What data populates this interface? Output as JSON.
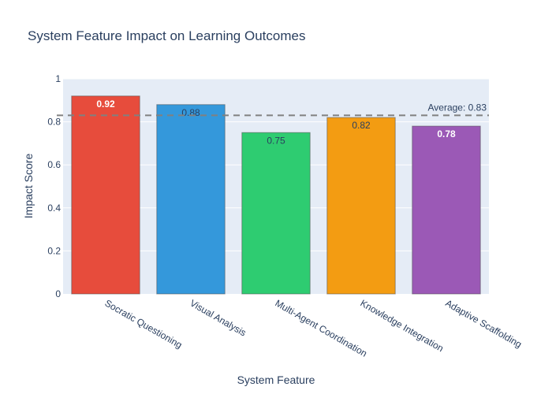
{
  "chart_data": {
    "type": "bar",
    "title": "System Feature Impact on Learning Outcomes",
    "xlabel": "System Feature",
    "ylabel": "Impact Score",
    "ylim": [
      0,
      1
    ],
    "yticks": [
      "0",
      "0.2",
      "0.4",
      "0.6",
      "0.8",
      "1"
    ],
    "categories": [
      "Socratic Questioning",
      "Visual Analysis",
      "Multi-Agent Coordination",
      "Knowledge Integration",
      "Adaptive Scaffolding"
    ],
    "values": [
      0.92,
      0.88,
      0.75,
      0.82,
      0.78
    ],
    "value_labels": [
      "0.92",
      "0.88",
      "0.75",
      "0.82",
      "0.78"
    ],
    "bar_colors": [
      "#e74c3c",
      "#3498db",
      "#2ecc71",
      "#f39c12",
      "#9b59b6"
    ],
    "label_colors": [
      "#ffffff",
      "#2a3f5f",
      "#2a3f5f",
      "#2a3f5f",
      "#ffffff"
    ],
    "label_bold": [
      true,
      false,
      false,
      false,
      true
    ],
    "reference_line": {
      "value": 0.83,
      "label": "Average: 0.83",
      "style": "dashed",
      "color": "#808080"
    },
    "grid": true,
    "plot_background": "#e5ecf6"
  }
}
